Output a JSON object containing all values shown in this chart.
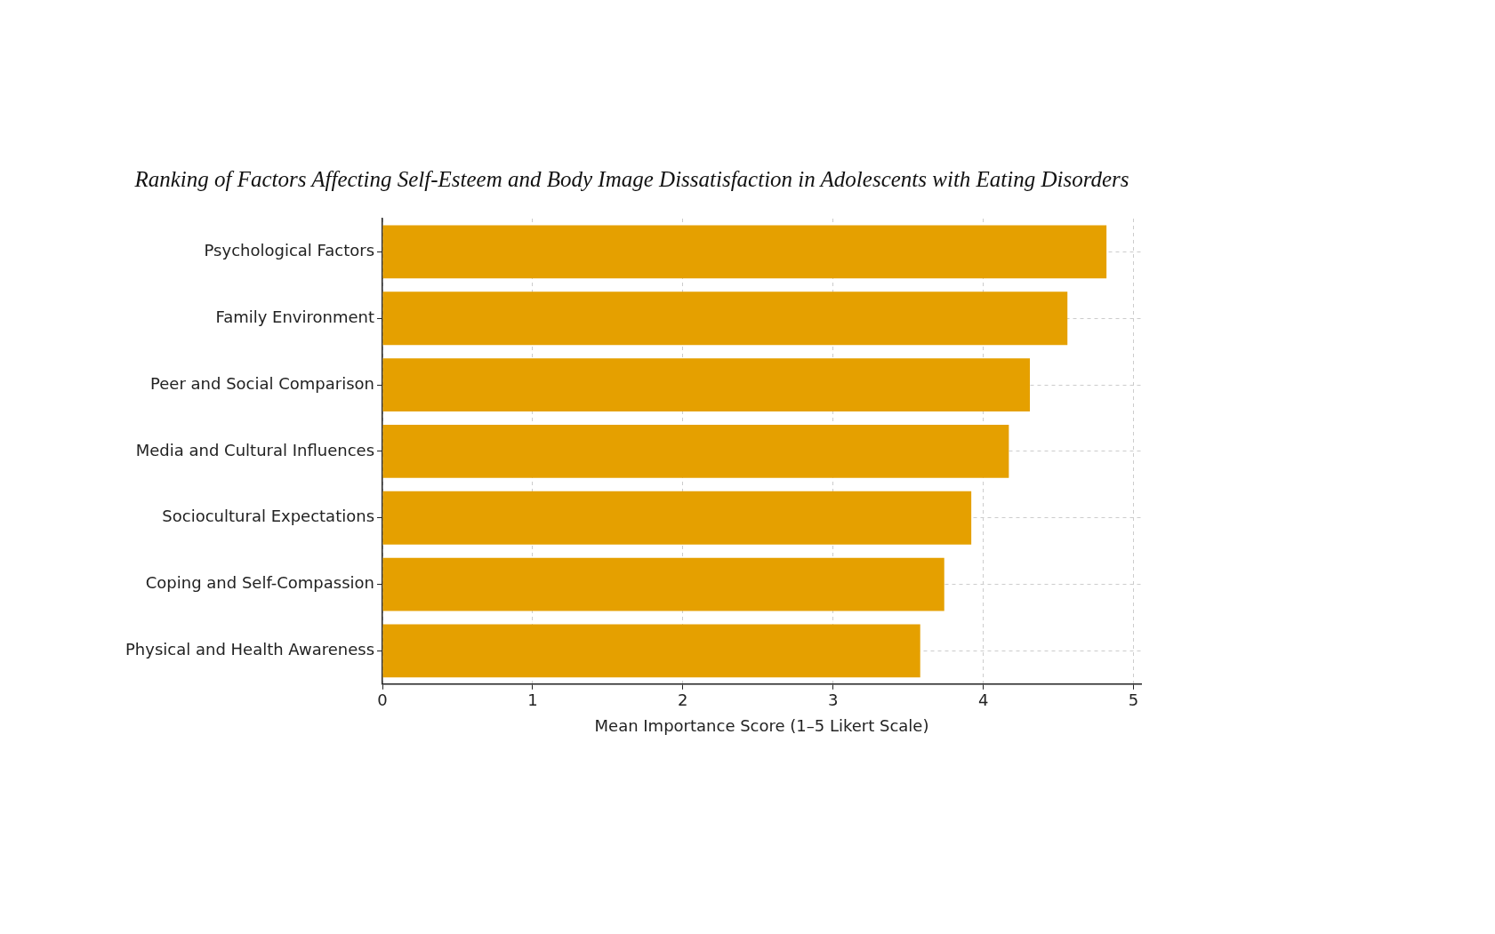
{
  "chart_data": {
    "type": "bar",
    "orientation": "horizontal",
    "title": "Ranking of Factors Affecting Self-Esteem and Body Image Dissatisfaction in Adolescents with Eating Disorders",
    "xlabel": "Mean Importance Score (1–5 Likert Scale)",
    "categories": [
      "Psychological Factors",
      "Family Environment",
      "Peer and Social Comparison",
      "Media and Cultural Influences",
      "Sociocultural Expectations",
      "Coping and Self-Compassion",
      "Physical and Health Awareness"
    ],
    "values": [
      4.82,
      4.56,
      4.31,
      4.17,
      3.92,
      3.74,
      3.58
    ],
    "color": "#e5a000",
    "xlim": [
      0,
      5.05
    ],
    "xticks": [
      0,
      1,
      2,
      3,
      4,
      5
    ],
    "grid": true
  }
}
